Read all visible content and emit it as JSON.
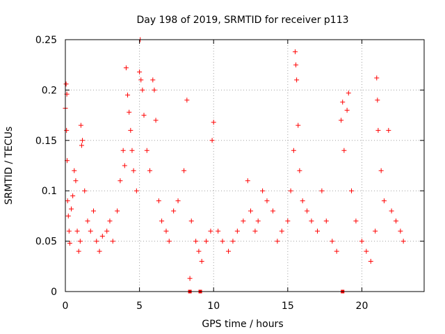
{
  "chart_data": {
    "type": "scatter",
    "title": "Day 198 of 2019, SRMTID for receiver p113",
    "xlabel": "GPS time / hours",
    "ylabel": "SRMTID / TECUs",
    "xlim": [
      0,
      24.2
    ],
    "ylim": [
      0,
      0.25
    ],
    "x_ticks": [
      0,
      5,
      10,
      15,
      20
    ],
    "x_tick_labels": [
      "0",
      "5",
      "10",
      "15",
      "20"
    ],
    "y_ticks": [
      0,
      0.05,
      0.1,
      0.15,
      0.2,
      0.25
    ],
    "y_tick_labels": [
      "0",
      "0.05",
      "0.1",
      "0.15",
      "0.2",
      "0.25"
    ],
    "grid": true,
    "marker": "+",
    "series": [
      {
        "name": "p113",
        "color": "#ff0000",
        "points": [
          [
            0.0,
            0.182
          ],
          [
            0.05,
            0.206
          ],
          [
            0.08,
            0.16
          ],
          [
            0.1,
            0.196
          ],
          [
            0.12,
            0.13
          ],
          [
            0.15,
            0.09
          ],
          [
            0.2,
            0.075
          ],
          [
            0.25,
            0.06
          ],
          [
            0.3,
            0.048
          ],
          [
            0.4,
            0.082
          ],
          [
            0.5,
            0.095
          ],
          [
            0.6,
            0.12
          ],
          [
            0.7,
            0.11
          ],
          [
            0.8,
            0.06
          ],
          [
            0.9,
            0.04
          ],
          [
            1.0,
            0.05
          ],
          [
            1.05,
            0.165
          ],
          [
            1.1,
            0.145
          ],
          [
            1.15,
            0.15
          ],
          [
            1.3,
            0.1
          ],
          [
            1.5,
            0.07
          ],
          [
            1.7,
            0.06
          ],
          [
            1.9,
            0.08
          ],
          [
            2.1,
            0.05
          ],
          [
            2.3,
            0.04
          ],
          [
            2.5,
            0.055
          ],
          [
            2.8,
            0.06
          ],
          [
            3.0,
            0.07
          ],
          [
            3.2,
            0.05
          ],
          [
            3.5,
            0.08
          ],
          [
            3.7,
            0.11
          ],
          [
            3.9,
            0.14
          ],
          [
            4.0,
            0.125
          ],
          [
            4.1,
            0.222
          ],
          [
            4.2,
            0.195
          ],
          [
            4.3,
            0.178
          ],
          [
            4.4,
            0.16
          ],
          [
            4.5,
            0.14
          ],
          [
            4.6,
            0.12
          ],
          [
            4.8,
            0.1
          ],
          [
            5.0,
            0.218
          ],
          [
            5.05,
            0.25
          ],
          [
            5.1,
            0.21
          ],
          [
            5.2,
            0.2
          ],
          [
            5.3,
            0.175
          ],
          [
            5.5,
            0.14
          ],
          [
            5.7,
            0.12
          ],
          [
            5.9,
            0.21
          ],
          [
            6.0,
            0.2
          ],
          [
            6.1,
            0.17
          ],
          [
            6.3,
            0.09
          ],
          [
            6.5,
            0.07
          ],
          [
            6.8,
            0.06
          ],
          [
            7.0,
            0.05
          ],
          [
            7.3,
            0.08
          ],
          [
            7.6,
            0.09
          ],
          [
            8.0,
            0.12
          ],
          [
            8.2,
            0.19
          ],
          [
            8.4,
            0.013
          ],
          [
            8.5,
            0.07
          ],
          [
            8.8,
            0.05
          ],
          [
            9.0,
            0.04
          ],
          [
            9.2,
            0.03
          ],
          [
            9.5,
            0.05
          ],
          [
            9.8,
            0.06
          ],
          [
            9.9,
            0.15
          ],
          [
            10.0,
            0.168
          ],
          [
            10.3,
            0.06
          ],
          [
            10.6,
            0.05
          ],
          [
            11.0,
            0.04
          ],
          [
            11.3,
            0.05
          ],
          [
            11.6,
            0.06
          ],
          [
            12.0,
            0.07
          ],
          [
            12.3,
            0.11
          ],
          [
            12.5,
            0.08
          ],
          [
            12.8,
            0.06
          ],
          [
            13.0,
            0.07
          ],
          [
            13.3,
            0.1
          ],
          [
            13.6,
            0.09
          ],
          [
            14.0,
            0.08
          ],
          [
            14.3,
            0.05
          ],
          [
            14.6,
            0.06
          ],
          [
            15.0,
            0.07
          ],
          [
            15.2,
            0.1
          ],
          [
            15.4,
            0.14
          ],
          [
            15.5,
            0.238
          ],
          [
            15.55,
            0.225
          ],
          [
            15.6,
            0.21
          ],
          [
            15.7,
            0.165
          ],
          [
            15.8,
            0.12
          ],
          [
            16.0,
            0.09
          ],
          [
            16.3,
            0.08
          ],
          [
            16.6,
            0.07
          ],
          [
            17.0,
            0.06
          ],
          [
            17.3,
            0.1
          ],
          [
            17.6,
            0.07
          ],
          [
            18.0,
            0.05
          ],
          [
            18.3,
            0.04
          ],
          [
            18.6,
            0.17
          ],
          [
            18.7,
            0.188
          ],
          [
            18.8,
            0.14
          ],
          [
            19.0,
            0.18
          ],
          [
            19.1,
            0.197
          ],
          [
            19.3,
            0.1
          ],
          [
            19.6,
            0.07
          ],
          [
            20.0,
            0.05
          ],
          [
            20.3,
            0.04
          ],
          [
            20.6,
            0.03
          ],
          [
            20.9,
            0.06
          ],
          [
            21.0,
            0.212
          ],
          [
            21.05,
            0.19
          ],
          [
            21.1,
            0.16
          ],
          [
            21.3,
            0.12
          ],
          [
            21.5,
            0.09
          ],
          [
            21.8,
            0.16
          ],
          [
            22.0,
            0.08
          ],
          [
            22.3,
            0.07
          ],
          [
            22.6,
            0.06
          ],
          [
            22.8,
            0.05
          ]
        ],
        "zero_points": [
          [
            8.4,
            0
          ],
          [
            9.1,
            0
          ],
          [
            18.7,
            0
          ]
        ]
      }
    ]
  }
}
